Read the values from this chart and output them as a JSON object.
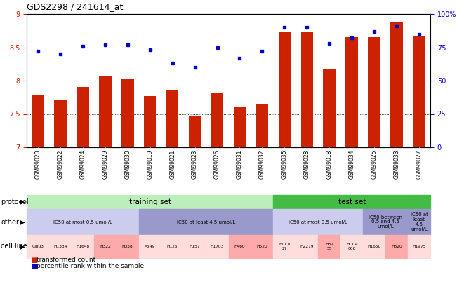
{
  "title": "GDS2298 / 241614_at",
  "samples": [
    "GSM99020",
    "GSM99022",
    "GSM99024",
    "GSM99029",
    "GSM99030",
    "GSM99019",
    "GSM99021",
    "GSM99023",
    "GSM99026",
    "GSM99031",
    "GSM99032",
    "GSM99035",
    "GSM99028",
    "GSM99018",
    "GSM99034",
    "GSM99025",
    "GSM99033",
    "GSM99027"
  ],
  "bar_values": [
    7.78,
    7.72,
    7.9,
    8.06,
    8.02,
    7.77,
    7.85,
    7.47,
    7.82,
    7.61,
    7.65,
    8.74,
    8.74,
    8.17,
    8.65,
    8.65,
    8.87,
    8.67
  ],
  "dot_values": [
    72,
    70,
    76,
    77,
    77,
    73,
    63,
    60,
    75,
    67,
    72,
    90,
    90,
    78,
    82,
    87,
    91,
    85
  ],
  "bar_color": "#cc2200",
  "dot_color": "#0000cc",
  "ylim_left": [
    7,
    9
  ],
  "ylim_right": [
    0,
    100
  ],
  "yticks_left": [
    7.0,
    7.5,
    8.0,
    8.5,
    9.0
  ],
  "ytick_labels_left": [
    "7",
    "7.5",
    "8",
    "8.5",
    "9"
  ],
  "yticks_right": [
    0,
    25,
    50,
    75,
    100
  ],
  "ytick_labels_right": [
    "0",
    "25",
    "50",
    "75",
    "100%"
  ],
  "training_count": 11,
  "test_count": 7,
  "protocol_training_color": "#bbeebb",
  "protocol_test_color": "#44bb44",
  "protocol_training_label": "training set",
  "protocol_test_label": "test set",
  "other_segments": [
    {
      "label": "IC50 at most 0.5 umol/L",
      "span": 5,
      "color": "#ccccee"
    },
    {
      "label": "IC50 at least 4.5 umol/L",
      "span": 6,
      "color": "#9999cc"
    },
    {
      "label": "IC50 at most 0.5 umol/L",
      "span": 4,
      "color": "#ccccee"
    },
    {
      "label": "IC50 between\n0.5 and 4.5\numol/L",
      "span": 2,
      "color": "#9999cc"
    },
    {
      "label": "IC50 at\nleast\n4.5\numol/L",
      "span": 1,
      "color": "#9999cc"
    }
  ],
  "cell_segments": [
    {
      "label": "Calu3",
      "color": "#ffdddd",
      "span": 1
    },
    {
      "label": "H1334",
      "color": "#ffdddd",
      "span": 1
    },
    {
      "label": "H1648",
      "color": "#ffdddd",
      "span": 1
    },
    {
      "label": "H322",
      "color": "#ffaaaa",
      "span": 1
    },
    {
      "label": "H358",
      "color": "#ffaaaa",
      "span": 1
    },
    {
      "label": "A549",
      "color": "#ffdddd",
      "span": 1
    },
    {
      "label": "H125",
      "color": "#ffdddd",
      "span": 1
    },
    {
      "label": "H157",
      "color": "#ffdddd",
      "span": 1
    },
    {
      "label": "H1703",
      "color": "#ffdddd",
      "span": 1
    },
    {
      "label": "H460",
      "color": "#ffaaaa",
      "span": 1
    },
    {
      "label": "H520",
      "color": "#ffaaaa",
      "span": 1
    },
    {
      "label": "HCC8\n27",
      "color": "#ffdddd",
      "span": 1
    },
    {
      "label": "H2279",
      "color": "#ffdddd",
      "span": 1
    },
    {
      "label": "H32\n55",
      "color": "#ffaaaa",
      "span": 1
    },
    {
      "label": "HCC4\n006",
      "color": "#ffdddd",
      "span": 1
    },
    {
      "label": "H1650",
      "color": "#ffdddd",
      "span": 1
    },
    {
      "label": "H820",
      "color": "#ffaaaa",
      "span": 1
    },
    {
      "label": "H1975",
      "color": "#ffdddd",
      "span": 1
    }
  ],
  "legend_bar_label": "transformed count",
  "legend_dot_label": "percentile rank within the sample",
  "xtick_area_color": "#dddddd",
  "fig_bg": "#ffffff"
}
